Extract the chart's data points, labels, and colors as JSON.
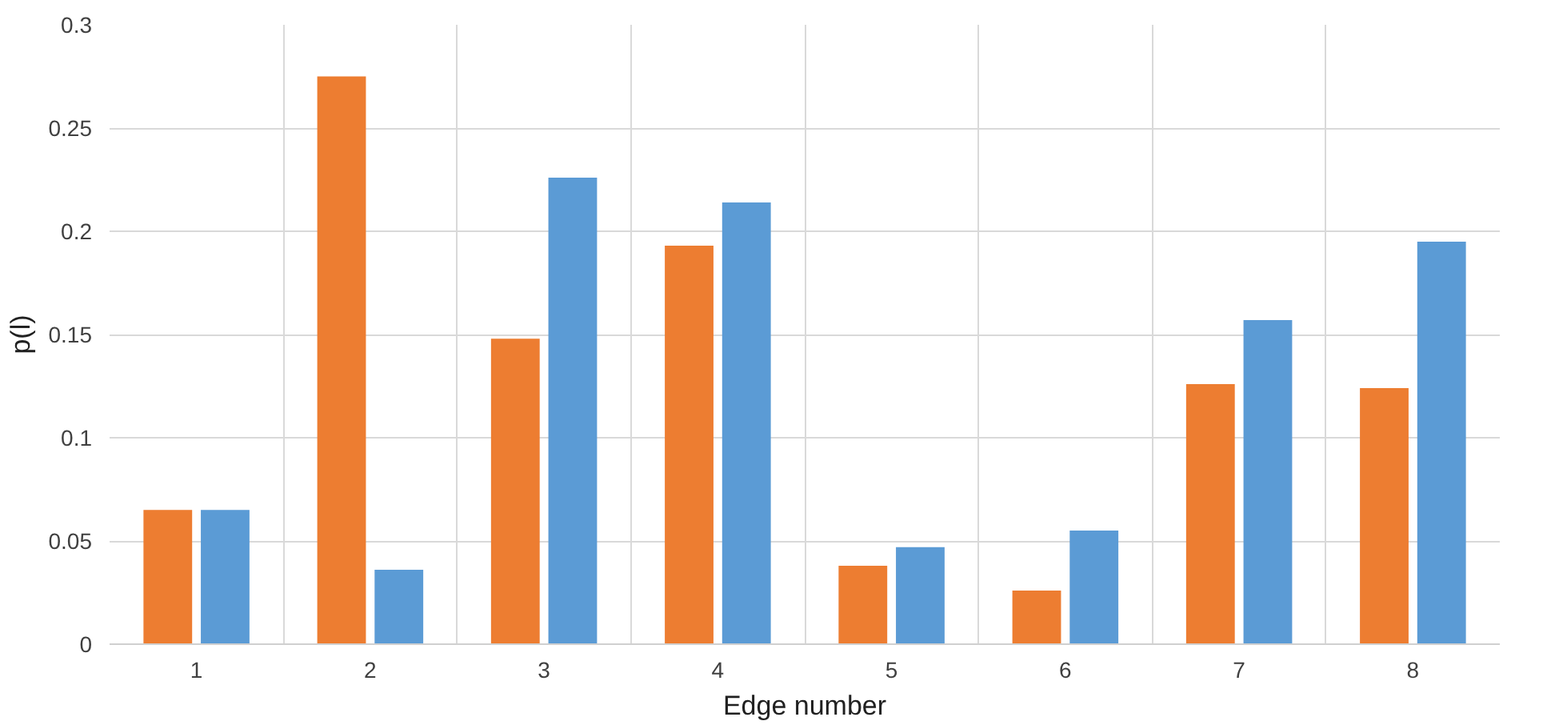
{
  "chart_data": {
    "type": "bar",
    "xlabel": "Edge number",
    "ylabel": "p(l)",
    "categories": [
      "1",
      "2",
      "3",
      "4",
      "5",
      "6",
      "7",
      "8"
    ],
    "series": [
      {
        "color": "#ed7d31",
        "values": [
          0.065,
          0.275,
          0.148,
          0.193,
          0.038,
          0.026,
          0.126,
          0.124
        ]
      },
      {
        "color": "#5b9bd5",
        "values": [
          0.065,
          0.036,
          0.226,
          0.214,
          0.047,
          0.055,
          0.157,
          0.195
        ]
      }
    ],
    "ylim": [
      0,
      0.3
    ],
    "yticks": [
      0,
      0.05,
      0.1,
      0.15,
      0.2,
      0.25,
      0.3
    ],
    "grid": true
  }
}
